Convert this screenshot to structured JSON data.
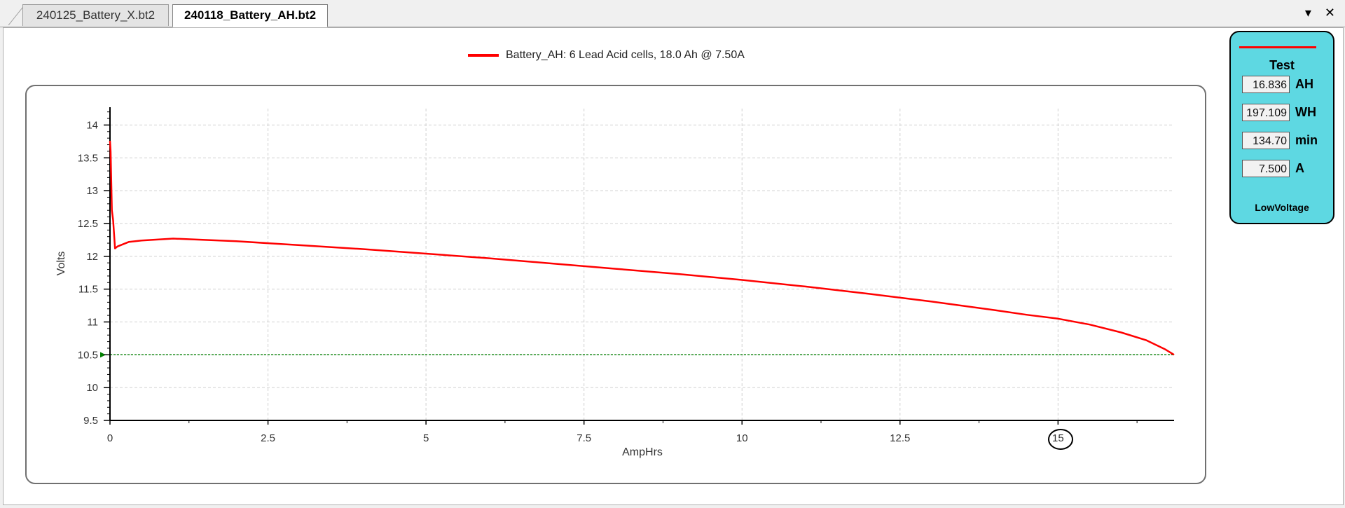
{
  "tabs": [
    {
      "label": "240125_Battery_X.bt2",
      "active": false
    },
    {
      "label": "240118_Battery_AH.bt2",
      "active": true
    }
  ],
  "window_controls": {
    "dropdown": "▾",
    "close": "✕"
  },
  "legend": {
    "label": "Battery_AH: 6 Lead Acid cells, 18.0 Ah @ 7.50A",
    "color": "#ff0000"
  },
  "stats": {
    "title": "Test",
    "rows": [
      {
        "value": "16.836",
        "unit": "AH"
      },
      {
        "value": "197.109",
        "unit": "WH"
      },
      {
        "value": "134.70",
        "unit": "min"
      },
      {
        "value": "7.500",
        "unit": "A"
      }
    ],
    "status": "LowVoltage",
    "panel_color": "#5ed8e2"
  },
  "chart_data": {
    "type": "line",
    "title": "",
    "xlabel": "AmpHrs",
    "ylabel": "Volts",
    "xlim": [
      0,
      16.836
    ],
    "ylim": [
      9.5,
      14.25
    ],
    "xticks": [
      0,
      2.5,
      5,
      7.5,
      10,
      12.5,
      15
    ],
    "xtick_labels": [
      "0",
      "2.5",
      "5",
      "7.5",
      "10",
      "12.5",
      "15"
    ],
    "yticks": [
      9.5,
      10,
      10.5,
      11,
      11.5,
      12,
      12.5,
      13,
      13.5,
      14
    ],
    "ytick_labels": [
      "9.5",
      "10",
      "10.5",
      "11",
      "11.5",
      "12",
      "12.5",
      "13",
      "13.5",
      "14"
    ],
    "grid": true,
    "series": [
      {
        "name": "Battery_AH: 6 Lead Acid cells, 18.0 Ah @ 7.50A",
        "color": "#ff0000",
        "x": [
          0,
          0.01,
          0.03,
          0.05,
          0.08,
          0.12,
          0.3,
          0.5,
          1.0,
          1.5,
          2.0,
          2.5,
          3.0,
          4.0,
          5.0,
          6.0,
          7.0,
          8.0,
          9.0,
          10.0,
          11.0,
          12.0,
          13.0,
          14.0,
          14.5,
          15.0,
          15.5,
          16.0,
          16.4,
          16.7,
          16.836
        ],
        "values": [
          13.76,
          13.6,
          12.7,
          12.55,
          12.12,
          12.15,
          12.22,
          12.24,
          12.27,
          12.25,
          12.23,
          12.2,
          12.17,
          12.11,
          12.04,
          11.97,
          11.89,
          11.81,
          11.73,
          11.64,
          11.54,
          11.43,
          11.31,
          11.18,
          11.11,
          11.05,
          10.96,
          10.84,
          10.72,
          10.58,
          10.5
        ]
      }
    ],
    "threshold": {
      "value": 10.5,
      "color": "#008000",
      "style": "dashed"
    }
  }
}
